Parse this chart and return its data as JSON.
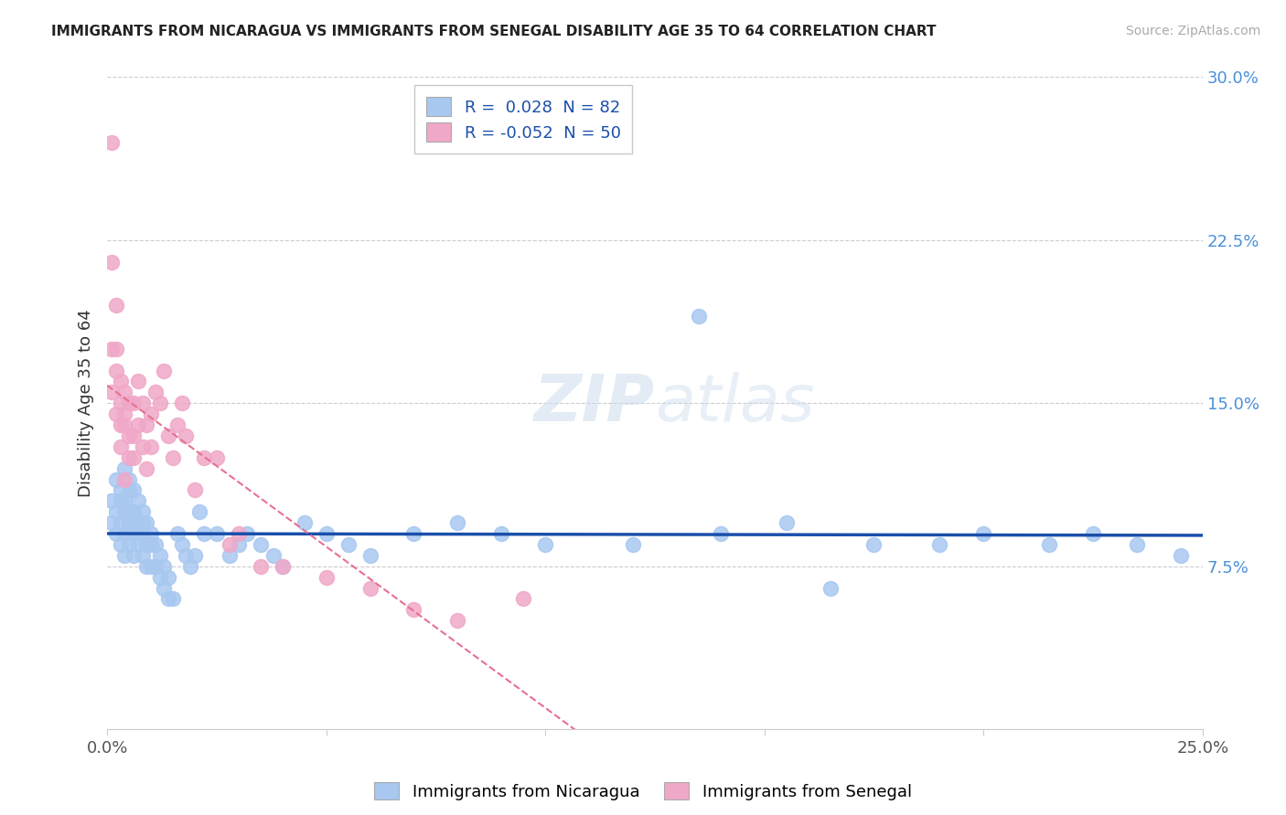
{
  "title": "IMMIGRANTS FROM NICARAGUA VS IMMIGRANTS FROM SENEGAL DISABILITY AGE 35 TO 64 CORRELATION CHART",
  "source": "Source: ZipAtlas.com",
  "xlabel_label": "Immigrants from Nicaragua",
  "ylabel_label": "Disability Age 35 to 64",
  "x_min": 0.0,
  "x_max": 0.25,
  "y_min": 0.0,
  "y_max": 0.3,
  "x_ticks": [
    0.0,
    0.05,
    0.1,
    0.15,
    0.2,
    0.25
  ],
  "x_tick_labels": [
    "0.0%",
    "",
    "",
    "",
    "",
    "25.0%"
  ],
  "y_ticks": [
    0.0,
    0.075,
    0.15,
    0.225,
    0.3
  ],
  "y_tick_labels": [
    "",
    "7.5%",
    "15.0%",
    "22.5%",
    "30.0%"
  ],
  "r_nicaragua": 0.028,
  "n_nicaragua": 82,
  "r_senegal": -0.052,
  "n_senegal": 50,
  "color_nicaragua": "#a8c8f0",
  "color_senegal": "#f0a8c8",
  "line_color_nicaragua": "#1a4faa",
  "line_color_senegal": "#e87090",
  "watermark_zip": "ZIP",
  "watermark_atlas": "atlas",
  "nicaragua_x": [
    0.001,
    0.001,
    0.002,
    0.002,
    0.002,
    0.003,
    0.003,
    0.003,
    0.003,
    0.004,
    0.004,
    0.004,
    0.004,
    0.004,
    0.005,
    0.005,
    0.005,
    0.005,
    0.005,
    0.005,
    0.006,
    0.006,
    0.006,
    0.006,
    0.006,
    0.007,
    0.007,
    0.007,
    0.007,
    0.008,
    0.008,
    0.008,
    0.008,
    0.009,
    0.009,
    0.009,
    0.01,
    0.01,
    0.01,
    0.011,
    0.011,
    0.012,
    0.012,
    0.013,
    0.013,
    0.014,
    0.014,
    0.015,
    0.016,
    0.017,
    0.018,
    0.019,
    0.02,
    0.021,
    0.022,
    0.025,
    0.028,
    0.03,
    0.032,
    0.035,
    0.038,
    0.04,
    0.045,
    0.05,
    0.055,
    0.06,
    0.07,
    0.08,
    0.09,
    0.1,
    0.12,
    0.14,
    0.155,
    0.175,
    0.19,
    0.2,
    0.215,
    0.225,
    0.235,
    0.245,
    0.135,
    0.165
  ],
  "nicaragua_y": [
    0.105,
    0.095,
    0.115,
    0.1,
    0.09,
    0.11,
    0.105,
    0.095,
    0.085,
    0.12,
    0.105,
    0.1,
    0.09,
    0.08,
    0.115,
    0.11,
    0.1,
    0.095,
    0.09,
    0.085,
    0.11,
    0.1,
    0.095,
    0.09,
    0.08,
    0.105,
    0.095,
    0.09,
    0.085,
    0.1,
    0.095,
    0.09,
    0.08,
    0.095,
    0.085,
    0.075,
    0.09,
    0.085,
    0.075,
    0.085,
    0.075,
    0.08,
    0.07,
    0.075,
    0.065,
    0.07,
    0.06,
    0.06,
    0.09,
    0.085,
    0.08,
    0.075,
    0.08,
    0.1,
    0.09,
    0.09,
    0.08,
    0.085,
    0.09,
    0.085,
    0.08,
    0.075,
    0.095,
    0.09,
    0.085,
    0.08,
    0.09,
    0.095,
    0.09,
    0.085,
    0.085,
    0.09,
    0.095,
    0.085,
    0.085,
    0.09,
    0.085,
    0.09,
    0.085,
    0.08,
    0.19,
    0.065
  ],
  "senegal_x": [
    0.001,
    0.001,
    0.001,
    0.001,
    0.002,
    0.002,
    0.002,
    0.002,
    0.003,
    0.003,
    0.003,
    0.003,
    0.004,
    0.004,
    0.004,
    0.004,
    0.005,
    0.005,
    0.005,
    0.006,
    0.006,
    0.006,
    0.007,
    0.007,
    0.008,
    0.008,
    0.009,
    0.009,
    0.01,
    0.01,
    0.011,
    0.012,
    0.013,
    0.014,
    0.015,
    0.016,
    0.017,
    0.018,
    0.02,
    0.022,
    0.025,
    0.028,
    0.03,
    0.035,
    0.04,
    0.05,
    0.06,
    0.07,
    0.08,
    0.095
  ],
  "senegal_y": [
    0.27,
    0.215,
    0.175,
    0.155,
    0.195,
    0.175,
    0.165,
    0.145,
    0.16,
    0.15,
    0.14,
    0.13,
    0.155,
    0.145,
    0.115,
    0.14,
    0.15,
    0.135,
    0.125,
    0.15,
    0.135,
    0.125,
    0.16,
    0.14,
    0.15,
    0.13,
    0.14,
    0.12,
    0.145,
    0.13,
    0.155,
    0.15,
    0.165,
    0.135,
    0.125,
    0.14,
    0.15,
    0.135,
    0.11,
    0.125,
    0.125,
    0.085,
    0.09,
    0.075,
    0.075,
    0.07,
    0.065,
    0.055,
    0.05,
    0.06
  ]
}
